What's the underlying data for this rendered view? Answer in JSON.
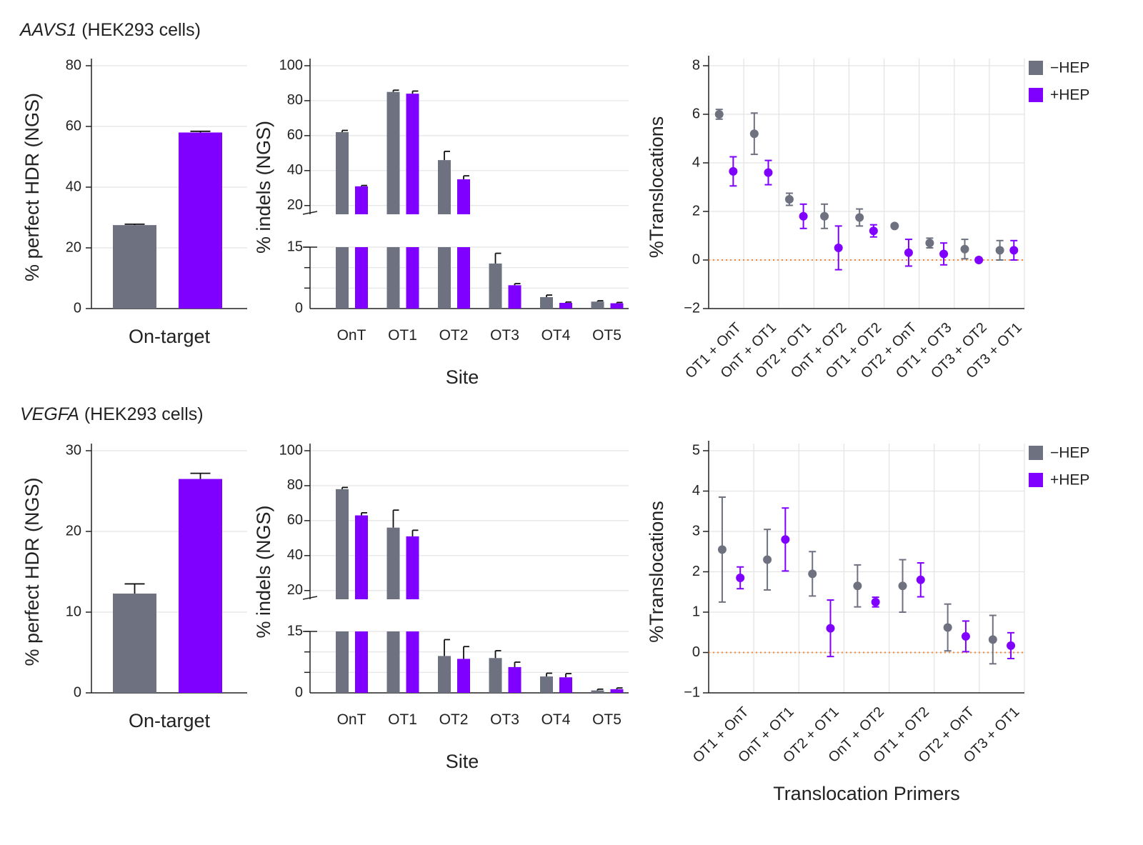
{
  "colors": {
    "minus_hep": "#6e7280",
    "plus_hep": "#7f00ff",
    "zero_line": "#f08a3c",
    "grid": "#e3e3e3",
    "axis": "#222222"
  },
  "sections": [
    {
      "gene": "AAVS1",
      "context": "(HEK293 cells)"
    },
    {
      "gene": "VEGFA",
      "context": "(HEK293 cells)"
    }
  ],
  "legend": [
    {
      "label": "−HEP",
      "color": "#6e7280"
    },
    {
      "label": "+HEP",
      "color": "#7f00ff"
    }
  ],
  "chart_data": [
    {
      "id": "aavs1-hdr",
      "type": "bar",
      "ylabel": "% perfect HDR (NGS)",
      "xlabel": "",
      "categories": [
        "On-target"
      ],
      "ylim": [
        0,
        80
      ],
      "yticks": [
        0,
        20,
        40,
        60,
        80
      ],
      "series": [
        {
          "name": "−HEP",
          "values": [
            27.5
          ],
          "errors": [
            0.3
          ]
        },
        {
          "name": "+HEP",
          "values": [
            58
          ],
          "errors": [
            0.4
          ]
        }
      ]
    },
    {
      "id": "aavs1-indels",
      "type": "bar",
      "broken_axis": true,
      "ylabel": "% indels (NGS)",
      "xlabel": "Site",
      "categories": [
        "OnT",
        "OT1",
        "OT2",
        "OT3",
        "OT4",
        "OT5"
      ],
      "ylim_lower": [
        0,
        15
      ],
      "ylim_upper": [
        15,
        100
      ],
      "yticks_lower": [
        0,
        15
      ],
      "yticks_upper": [
        20,
        40,
        60,
        80,
        100
      ],
      "series": [
        {
          "name": "−HEP",
          "values": [
            62,
            85,
            46,
            11,
            2.8,
            1.7
          ],
          "errors": [
            1,
            1,
            5,
            2.5,
            0.5,
            0.2
          ]
        },
        {
          "name": "+HEP",
          "values": [
            31,
            84,
            35,
            5.7,
            1.4,
            1.3
          ],
          "errors": [
            0.5,
            1.5,
            2,
            0.4,
            0.2,
            0.2
          ]
        }
      ]
    },
    {
      "id": "aavs1-translocations",
      "type": "scatter",
      "ylabel": "%Translocations",
      "xlabel": "",
      "categories": [
        "OT1 + OnT",
        "OnT + OT1",
        "OT2 + OT1",
        "OnT + OT2",
        "OT1 + OT2",
        "OT2 + OnT",
        "OT1 + OT3",
        "OT3 + OT2",
        "OT3 + OT1"
      ],
      "ylim": [
        -2,
        8
      ],
      "yticks": [
        -2,
        0,
        2,
        4,
        6,
        8
      ],
      "reference_line": 0,
      "series": [
        {
          "name": "−HEP",
          "values": [
            6.0,
            5.2,
            2.5,
            1.8,
            1.75,
            1.4,
            0.7,
            0.45,
            0.4
          ],
          "errors": [
            0.2,
            0.85,
            0.25,
            0.5,
            0.35,
            0.05,
            0.2,
            0.4,
            0.4
          ]
        },
        {
          "name": "+HEP",
          "values": [
            3.65,
            3.6,
            1.8,
            0.5,
            1.2,
            0.3,
            0.25,
            0.0,
            0.4
          ],
          "errors": [
            0.6,
            0.5,
            0.5,
            0.9,
            0.25,
            0.55,
            0.45,
            0.02,
            0.4
          ]
        }
      ]
    },
    {
      "id": "vegfa-hdr",
      "type": "bar",
      "ylabel": "% perfect HDR (NGS)",
      "xlabel": "",
      "categories": [
        "On-target"
      ],
      "ylim": [
        0,
        30
      ],
      "yticks": [
        0,
        10,
        20,
        30
      ],
      "series": [
        {
          "name": "−HEP",
          "values": [
            12.3
          ],
          "errors": [
            1.2
          ]
        },
        {
          "name": "+HEP",
          "values": [
            26.5
          ],
          "errors": [
            0.7
          ]
        }
      ]
    },
    {
      "id": "vegfa-indels",
      "type": "bar",
      "broken_axis": true,
      "ylabel": "% indels (NGS)",
      "xlabel": "Site",
      "categories": [
        "OnT",
        "OT1",
        "OT2",
        "OT3",
        "OT4",
        "OT5"
      ],
      "ylim_lower": [
        0,
        15
      ],
      "ylim_upper": [
        15,
        100
      ],
      "yticks_lower": [
        0,
        15
      ],
      "yticks_upper": [
        20,
        40,
        60,
        80,
        100
      ],
      "series": [
        {
          "name": "−HEP",
          "values": [
            78,
            56,
            9,
            8.5,
            4,
            0.6
          ],
          "errors": [
            1,
            10,
            4,
            1.8,
            0.8,
            0.3
          ]
        },
        {
          "name": "+HEP",
          "values": [
            63,
            51,
            8.3,
            6.3,
            3.8,
            0.9
          ],
          "errors": [
            1.5,
            3.5,
            3,
            1.2,
            0.9,
            0.3
          ]
        }
      ]
    },
    {
      "id": "vegfa-translocations",
      "type": "scatter",
      "ylabel": "%Translocations",
      "xlabel": "Translocation Primers",
      "categories": [
        "OT1 + OnT",
        "OnT + OT1",
        "OT2 + OT1",
        "OnT + OT2",
        "OT1 + OT2",
        "OT2 + OnT",
        "OT3 + OT1"
      ],
      "ylim": [
        -1,
        5
      ],
      "yticks": [
        -1,
        0,
        1,
        2,
        3,
        4,
        5
      ],
      "reference_line": 0,
      "series": [
        {
          "name": "−HEP",
          "values": [
            2.55,
            2.3,
            1.95,
            1.65,
            1.65,
            0.62,
            0.32
          ],
          "errors": [
            1.3,
            0.75,
            0.55,
            0.52,
            0.65,
            0.58,
            0.6
          ]
        },
        {
          "name": "+HEP",
          "values": [
            1.85,
            2.8,
            0.6,
            1.25,
            1.8,
            0.4,
            0.17
          ],
          "errors": [
            0.27,
            0.78,
            0.7,
            0.12,
            0.42,
            0.38,
            0.32
          ]
        }
      ]
    }
  ]
}
